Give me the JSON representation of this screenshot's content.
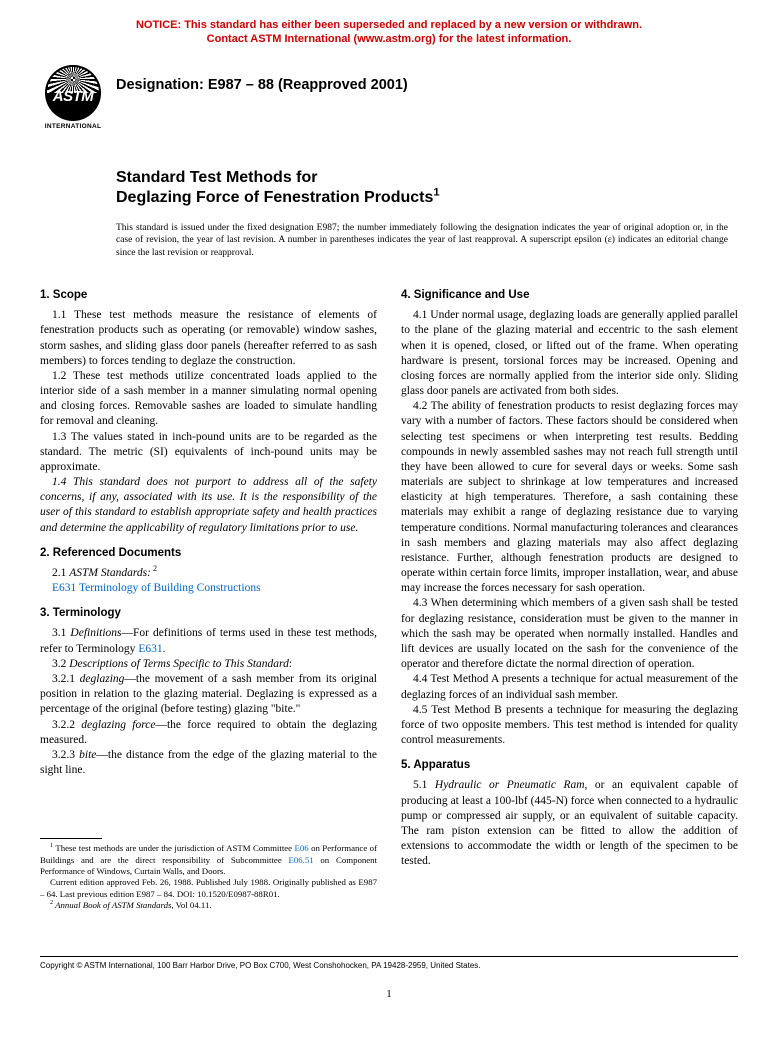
{
  "notice": {
    "line1": "NOTICE: This standard has either been superseded and replaced by a new version or withdrawn.",
    "line2": "Contact ASTM International (www.astm.org) for the latest information.",
    "color": "#cc0000"
  },
  "logo": {
    "text": "ASTM",
    "sub": "INTERNATIONAL"
  },
  "designation": "Designation: E987 – 88 (Reapproved 2001)",
  "title_line1": "Standard Test Methods for",
  "title_line2": "Deglazing Force of Fenestration Products",
  "title_sup": "1",
  "issue_note": "This standard is issued under the fixed designation E987; the number immediately following the designation indicates the year of original adoption or, in the case of revision, the year of last revision. A number in parentheses indicates the year of last reapproval. A superscript epsilon (ε) indicates an editorial change since the last revision or reapproval.",
  "left": {
    "s1": {
      "head": "1. Scope",
      "p1": "1.1 These test methods measure the resistance of elements of fenestration products such as operating (or removable) window sashes, storm sashes, and sliding glass door panels (hereafter referred to as sash members) to forces tending to deglaze the construction.",
      "p2": "1.2 These test methods utilize concentrated loads applied to the interior side of a sash member in a manner simulating normal opening and closing forces. Removable sashes are loaded to simulate handling for removal and cleaning.",
      "p3": "1.3 The values stated in inch-pound units are to be regarded as the standard. The metric (SI) equivalents of inch-pound units may be approximate.",
      "p4": "1.4 This standard does not purport to address all of the safety concerns, if any, associated with its use. It is the responsibility of the user of this standard to establish appropriate safety and health practices and determine the applicability of regulatory limitations prior to use."
    },
    "s2": {
      "head": "2. Referenced Documents",
      "p1a": "2.1 ",
      "p1b": "ASTM Standards:",
      "p1sup": " 2",
      "link1": "E631",
      "link1_text": " Terminology of Building Constructions"
    },
    "s3": {
      "head": "3. Terminology",
      "p1a": "3.1 ",
      "p1b": "Definitions",
      "p1c": "—For definitions of terms used in these test methods, refer to Terminology ",
      "p1link": "E631",
      "p1d": ".",
      "p2a": "3.2 ",
      "p2b": "Descriptions of Terms Specific to This Standard",
      "p2c": ":",
      "p3a": "3.2.1 ",
      "p3b": "deglazing",
      "p3c": "—the movement of a sash member from its original position in relation to the glazing material. Deglazing is expressed as a percentage of the original (before testing) glazing \"bite.\"",
      "p4a": "3.2.2 ",
      "p4b": "deglazing force",
      "p4c": "—the force required to obtain the deglazing measured.",
      "p5a": "3.2.3 ",
      "p5b": "bite",
      "p5c": "—the distance from the edge of the glazing material to the sight line."
    },
    "fn1a": "1",
    "fn1b": " These test methods are under the jurisdiction of ASTM Committee ",
    "fn1link1": "E06",
    "fn1c": " on Performance of Buildings and are the direct responsibility of Subcommittee ",
    "fn1link2": "E06.51",
    "fn1d": " on Component Performance of Windows, Curtain Walls, and Doors.",
    "fn1e": "Current edition approved Feb. 26, 1988. Published July 1988. Originally published as E987 – 64. Last previous edition E987 – 84. DOI: 10.1520/E0987-88R01.",
    "fn2a": "2",
    "fn2b": " Annual Book of ASTM Standards",
    "fn2c": ", Vol 04.11."
  },
  "right": {
    "s4": {
      "head": "4. Significance and Use",
      "p1": "4.1 Under normal usage, deglazing loads are generally applied parallel to the plane of the glazing material and eccentric to the sash element when it is opened, closed, or lifted out of the frame. When operating hardware is present, torsional forces may be increased. Opening and closing forces are normally applied from the interior side only. Sliding glass door panels are activated from both sides.",
      "p2": "4.2 The ability of fenestration products to resist deglazing forces may vary with a number of factors. These factors should be considered when selecting test specimens or when interpreting test results. Bedding compounds in newly assembled sashes may not reach full strength until they have been allowed to cure for several days or weeks. Some sash materials are subject to shrinkage at low temperatures and increased elasticity at high temperatures. Therefore, a sash containing these materials may exhibit a range of deglazing resistance due to varying temperature conditions. Normal manufacturing tolerances and clearances in sash members and glazing materials may also affect deglazing resistance. Further, although fenestration products are designed to operate within certain force limits, improper installation, wear, and abuse may increase the forces necessary for sash operation.",
      "p3": "4.3 When determining which members of a given sash shall be tested for deglazing resistance, consideration must be given to the manner in which the sash may be operated when normally installed. Handles and lift devices are usually located on the sash for the convenience of the operator and therefore dictate the normal direction of operation.",
      "p4": "4.4 Test Method A presents a technique for actual measurement of the deglazing forces of an individual sash member.",
      "p5": "4.5 Test Method B presents a technique for measuring the deglazing force of two opposite members. This test method is intended for quality control measurements."
    },
    "s5": {
      "head": "5. Apparatus",
      "p1a": "5.1 ",
      "p1b": "Hydraulic or Pneumatic Ram",
      "p1c": ", or an equivalent capable of producing at least a 100-lbf (445-N) force when connected to a hydraulic pump or compressed air supply, or an equivalent of suitable capacity. The ram piston extension can be fitted to allow the addition of extensions to accommodate the width or length of the specimen to be tested."
    }
  },
  "copyright": "Copyright © ASTM International, 100 Barr Harbor Drive, PO Box C700, West Conshohocken, PA 19428-2959, United States.",
  "pagenum": "1"
}
